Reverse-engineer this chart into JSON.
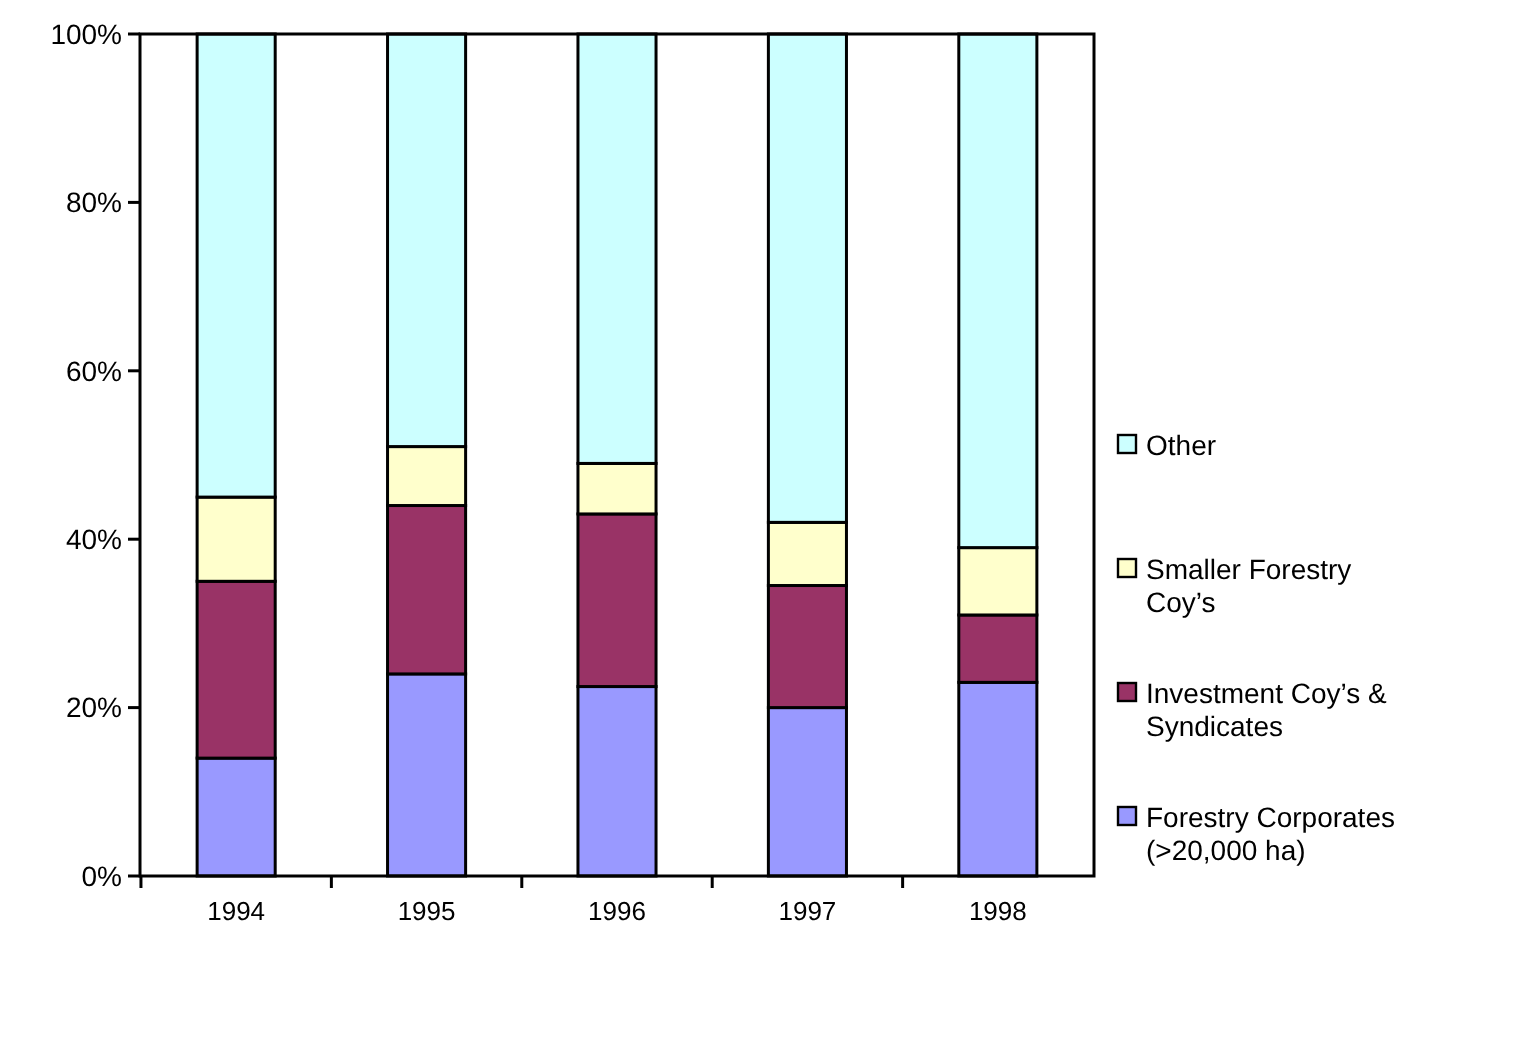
{
  "chart_data": {
    "type": "bar",
    "stacked": true,
    "categories": [
      "1994",
      "1995",
      "1996",
      "1997",
      "1998"
    ],
    "series": [
      {
        "name": "Forestry Corporates (>20,000 ha)",
        "color": "#9999ff",
        "values": [
          14,
          24,
          22.5,
          20,
          23
        ]
      },
      {
        "name": "Investment Coy’s & Syndicates",
        "color": "#993366",
        "values": [
          21,
          20,
          20.5,
          14.5,
          8
        ]
      },
      {
        "name": "Smaller Forestry Coy’s",
        "color": "#ffffcc",
        "values": [
          10,
          7,
          6,
          7.5,
          8
        ]
      },
      {
        "name": "Other",
        "color": "#ccffff",
        "values": [
          55,
          49,
          51,
          58,
          61
        ]
      }
    ],
    "ylim": [
      0,
      100
    ],
    "yticks": [
      {
        "value": 0,
        "label": "0%"
      },
      {
        "value": 20,
        "label": "20%"
      },
      {
        "value": 40,
        "label": "40%"
      },
      {
        "value": 60,
        "label": "60%"
      },
      {
        "value": 80,
        "label": "80%"
      },
      {
        "value": 100,
        "label": "100%"
      }
    ],
    "grid": false,
    "legend": "right"
  }
}
